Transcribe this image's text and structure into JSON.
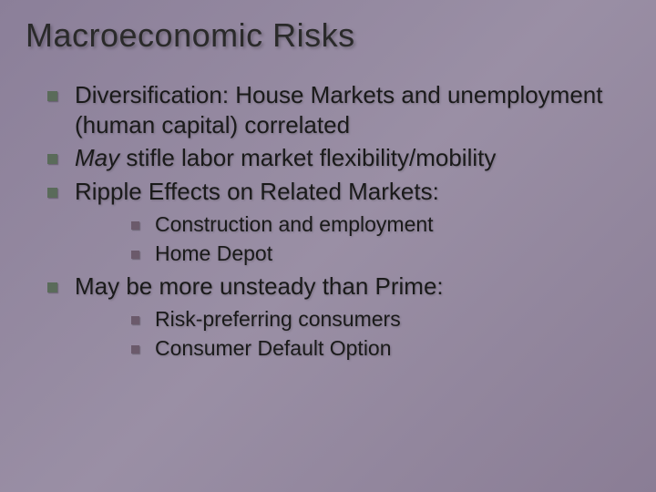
{
  "slide": {
    "title": "Macroeconomic Risks",
    "bullets": [
      {
        "text": "Diversification: House Markets and unemployment (human capital) correlated"
      },
      {
        "prefix_italic": "May",
        "rest": " stifle labor market flexibility/mobility"
      },
      {
        "text": "Ripple Effects on Related Markets:",
        "children": [
          {
            "text": "Construction and employment"
          },
          {
            "text": "Home Depot"
          }
        ]
      },
      {
        "text": "May be more unsteady than Prime:",
        "children": [
          {
            "text": "Risk-preferring consumers"
          },
          {
            "text": "Consumer Default Option"
          }
        ]
      }
    ]
  },
  "style": {
    "background_gradient": [
      "#8b7f99",
      "#9a8fa5",
      "#8a7d95"
    ],
    "title_color": "#2a2a2a",
    "title_fontsize": 36,
    "body_color": "#1a1a1a",
    "l1_fontsize": 26,
    "l2_fontsize": 23,
    "l1_bullet_color": "#5a6b5a",
    "l2_bullet_color": "#6b5a6b",
    "font_family": "Verdana"
  }
}
